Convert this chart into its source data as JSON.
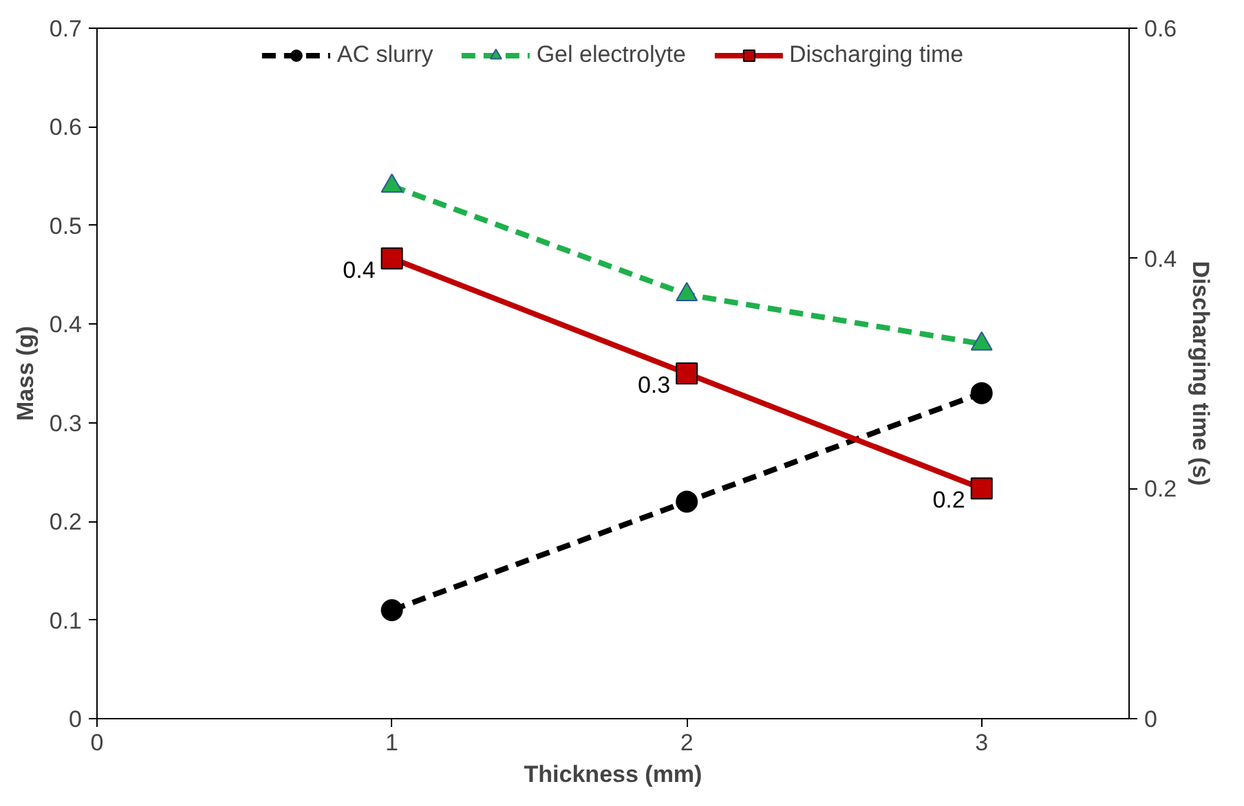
{
  "chart_data": {
    "type": "line",
    "xlabel": "Thickness (mm)",
    "ylabel": "Mass (g)",
    "y2label": "Discharging time (s)",
    "x": [
      1,
      2,
      3
    ],
    "xlim": [
      0,
      3.5
    ],
    "xticks": [
      0,
      1,
      2,
      3
    ],
    "ylim": [
      0,
      0.7
    ],
    "yticks": [
      0,
      0.1,
      0.2,
      0.3,
      0.4,
      0.5,
      0.6,
      0.7
    ],
    "y2lim": [
      0,
      0.6
    ],
    "y2ticks": [
      0,
      0.2,
      0.4,
      0.6
    ],
    "grid": false,
    "legend": "top",
    "series": [
      {
        "name": "AC slurry",
        "color": "#000000",
        "values": [
          0.11,
          0.22,
          0.33
        ],
        "marker": "circle",
        "line_style": "dashed"
      },
      {
        "name": "Gel electrolyte",
        "color": "#1fb04c",
        "values": [
          0.54,
          0.43,
          0.38
        ],
        "marker": "triangle",
        "line_style": "dashed"
      },
      {
        "name": "Discharging time",
        "color": "#c00000",
        "values": [
          0.4,
          0.3,
          0.2
        ],
        "axis": "y2",
        "marker": "square",
        "line_style": "solid",
        "value_labels": [
          "0.4",
          "0.3",
          "0.2"
        ]
      }
    ]
  }
}
